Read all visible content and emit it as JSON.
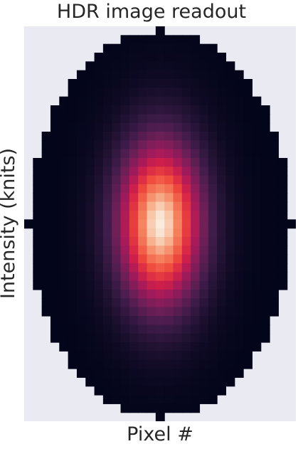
{
  "chart_data": {
    "type": "heatmap",
    "title": "HDR image readout",
    "xlabel": "Pixel #",
    "ylabel": "Intensity (knits)",
    "colormap": "rocket",
    "grid": false,
    "legend": "none",
    "background_color": "#eaeaf2",
    "grid_shape": [
      45,
      31
    ],
    "mask": "ellipse",
    "peak": {
      "row": 22,
      "col": 15,
      "value": 1.0
    },
    "spread": {
      "rows": 7.0,
      "cols": 3.6
    }
  }
}
